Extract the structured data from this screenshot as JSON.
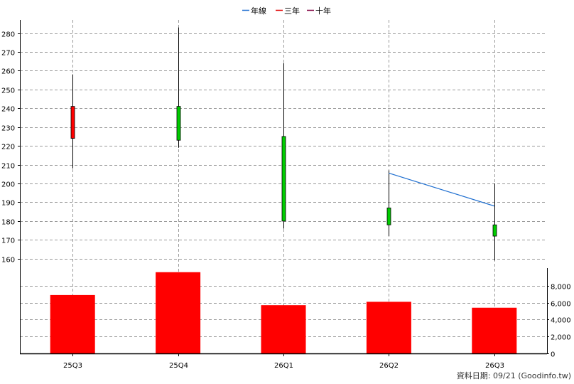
{
  "legend": [
    {
      "label": "年線",
      "color": "#1f6fd0"
    },
    {
      "label": "三年",
      "color": "#e00000"
    },
    {
      "label": "十年",
      "color": "#800040"
    }
  ],
  "footer": "資料日期: 09/21  (Goodinfo.tw)",
  "chart_data": {
    "type": "candlestick+bar",
    "categories": [
      "25Q3",
      "25Q4",
      "26Q1",
      "26Q2",
      "26Q3"
    ],
    "price_axis": {
      "min": 155,
      "max": 287,
      "ticks": [
        160,
        170,
        180,
        190,
        200,
        210,
        220,
        230,
        240,
        250,
        260,
        270,
        280
      ]
    },
    "volume_axis": {
      "min": 0,
      "max": 10000,
      "ticks": [
        0,
        2000,
        4000,
        6000,
        8000
      ],
      "tick_labels": [
        "0",
        "2,000",
        "4,000",
        "6,000",
        "8,000"
      ]
    },
    "candles": [
      {
        "open": 224,
        "close": 241,
        "high": 258,
        "low": 208,
        "color": "#ff0000"
      },
      {
        "open": 241,
        "close": 223,
        "high": 283,
        "low": 219,
        "color": "#00cc00"
      },
      {
        "open": 225,
        "close": 180,
        "high": 264,
        "low": 176,
        "color": "#00cc00"
      },
      {
        "open": 187,
        "close": 178,
        "high": 207,
        "low": 172,
        "color": "#00cc00"
      },
      {
        "open": 178,
        "close": 172,
        "high": 200,
        "low": 159,
        "color": "#00cc00"
      }
    ],
    "volume": [
      6900,
      9600,
      5700,
      6100,
      5400
    ],
    "ma_year": [
      {
        "category": "26Q2",
        "value": 205.5
      },
      {
        "category": "26Q3",
        "value": 188
      }
    ],
    "grid": true,
    "legend_position": "top-center"
  }
}
